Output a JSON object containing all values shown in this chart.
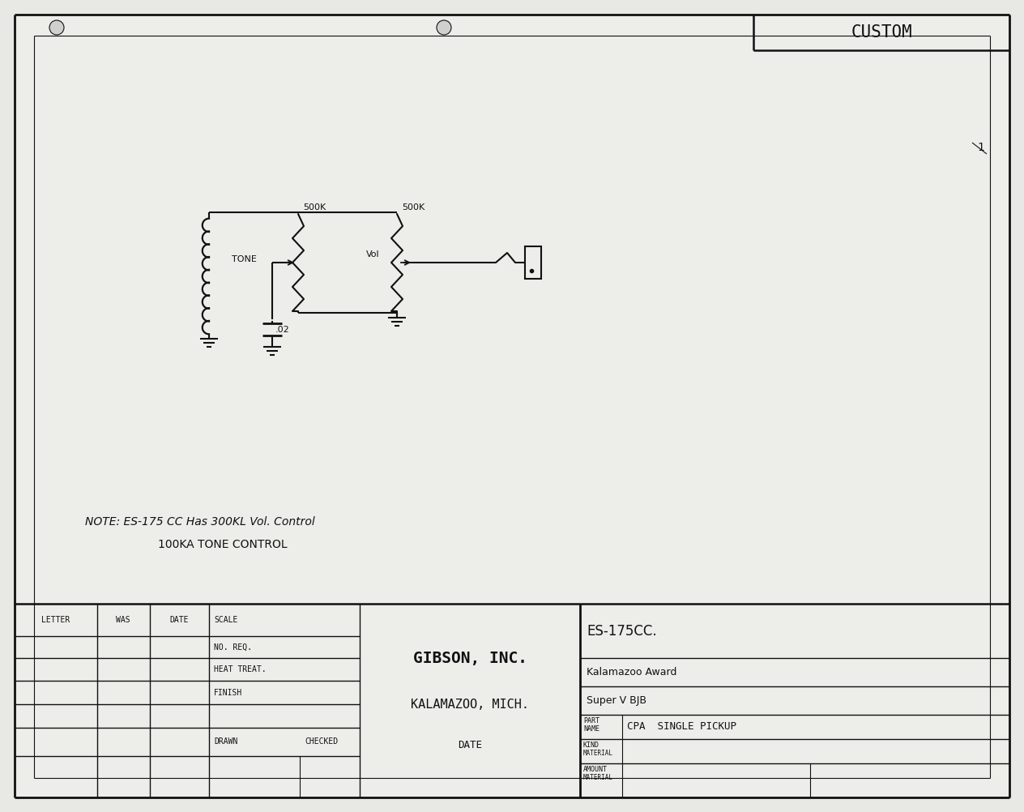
{
  "bg_color": "#e8e8e4",
  "line_color": "#111111",
  "title_box": "CUSTOM",
  "model": "ES-175CC.",
  "brand_line1": "Kalamazoo Award",
  "brand_line2": "Super V BJB",
  "company": "GIBSON, INC.",
  "location": "KALAMAZOO, MICH.",
  "part_name": "CPA  SINGLE PICKUP",
  "note_line1": "NOTE: ES-175 CC Has 300KL Vol. Control",
  "note_line2": "100KA TONE CONTROL",
  "page_number": "1"
}
